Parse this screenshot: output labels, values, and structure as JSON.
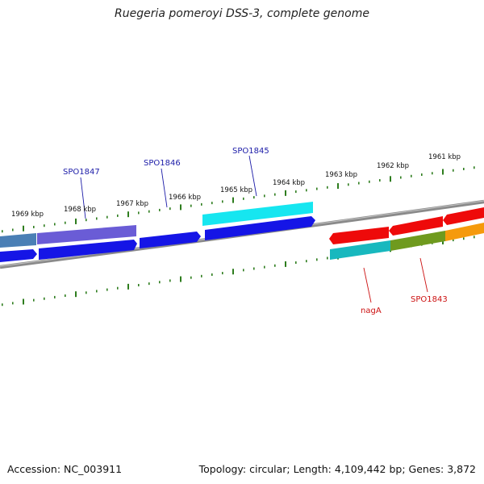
{
  "title": "Ruegeria pomeroyi DSS-3, complete genome",
  "footer": {
    "accession": "Accession: NC_003911",
    "summary": "Topology: circular; Length: 4,109,442 bp; Genes: 3,872"
  },
  "ruler": {
    "labels": [
      {
        "text": "1969 kbp"
      },
      {
        "text": "1968 kbp"
      },
      {
        "text": "1967 kbp"
      },
      {
        "text": "1966 kbp"
      },
      {
        "text": "1965 kbp"
      },
      {
        "text": "1964 kbp"
      },
      {
        "text": "1963 kbp"
      },
      {
        "text": "1962 kbp"
      },
      {
        "text": "1961 kbp"
      }
    ]
  },
  "gene_labels": [
    {
      "text": "SPO1847",
      "color": "#1c1ca8"
    },
    {
      "text": "SPO1846",
      "color": "#1c1ca8"
    },
    {
      "text": "SPO1845",
      "color": "#1c1ca8"
    },
    {
      "text": "nagA",
      "color": "#cc1111"
    },
    {
      "text": "SPO1843",
      "color": "#cc1111"
    }
  ],
  "colors": {
    "ruler": "#2e7d1e",
    "backbone": "#8a8a8a",
    "blue": "#1515e6",
    "cyan": "#16e6f0",
    "steelblue": "#4a7fb5",
    "slateblue": "#6a5cd6",
    "red": "#ee0a0a",
    "teal": "#18b8be",
    "olive": "#6f9a1e",
    "orange": "#f59a0c"
  }
}
